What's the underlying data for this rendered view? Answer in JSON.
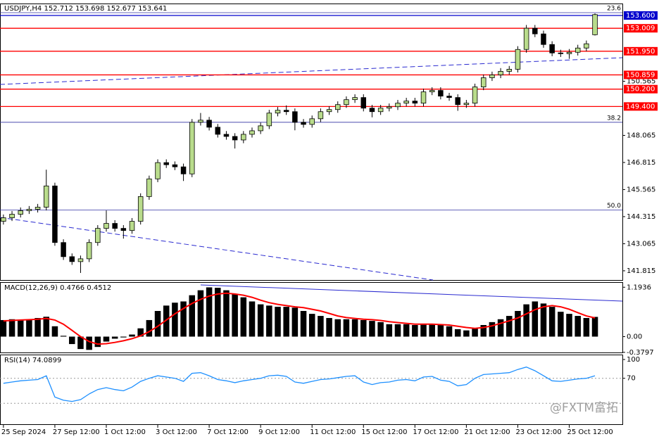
{
  "chart_data": [
    {
      "type": "candlestick",
      "title": "USDJPY,H4 152.712 153.698 152.677 153.641",
      "open": [
        144.1,
        144.263,
        144.426,
        144.589,
        144.655,
        144.752,
        145.732,
        143.12,
        142.467,
        142.239,
        142.369,
        143.12,
        143.773,
        144.002,
        143.773,
        143.675,
        144.1,
        145.242,
        146.058,
        146.809,
        146.711,
        146.613,
        146.287,
        148.67,
        148.768,
        148.442,
        148.115,
        148.017,
        147.854,
        148.115,
        148.278,
        148.507,
        149.095,
        149.225,
        149.16,
        148.67,
        148.572,
        148.833,
        149.16,
        149.258,
        149.486,
        149.715,
        149.813,
        149.323,
        149.16,
        149.323,
        149.388,
        149.552,
        149.65,
        149.552,
        150.074,
        150.139,
        149.878,
        149.813,
        149.486,
        149.552,
        150.303,
        150.727,
        150.858,
        151.021,
        151.119,
        152.033,
        153.012,
        152.751,
        152.261,
        151.87,
        151.837,
        151.902,
        152.098,
        152.712
      ],
      "high": [
        144.413,
        144.576,
        144.739,
        144.805,
        144.902,
        146.483,
        145.882,
        143.27,
        142.617,
        142.519,
        143.27,
        143.923,
        144.6,
        144.152,
        143.923,
        144.25,
        145.392,
        146.208,
        146.959,
        146.959,
        146.863,
        146.763,
        148.82,
        149.1,
        148.918,
        148.592,
        148.265,
        148.167,
        148.265,
        148.428,
        148.657,
        149.245,
        149.375,
        149.45,
        149.31,
        148.82,
        148.983,
        149.31,
        149.408,
        149.636,
        149.865,
        149.963,
        149.963,
        149.473,
        149.473,
        149.538,
        149.702,
        149.8,
        149.8,
        150.224,
        150.289,
        150.289,
        150.028,
        149.963,
        149.702,
        150.453,
        150.877,
        151.008,
        151.171,
        151.269,
        152.183,
        153.162,
        153.162,
        152.901,
        152.411,
        152.02,
        152.052,
        152.248,
        152.444,
        153.698
      ],
      "low": [
        143.95,
        144.113,
        144.276,
        144.439,
        144.505,
        144.602,
        142.97,
        142.317,
        142.089,
        141.716,
        142.219,
        142.97,
        143.623,
        143.623,
        143.3,
        143.525,
        143.95,
        145.092,
        145.908,
        146.561,
        146.463,
        145.96,
        146.137,
        148.52,
        148.292,
        147.965,
        147.867,
        147.46,
        147.704,
        147.965,
        148.128,
        148.357,
        148.945,
        149.01,
        148.3,
        148.422,
        148.422,
        148.683,
        149.01,
        149.108,
        149.336,
        149.565,
        149.173,
        148.9,
        149.01,
        149.173,
        149.238,
        149.402,
        149.402,
        149.402,
        149.924,
        149.728,
        149.663,
        149.2,
        149.336,
        149.402,
        150.153,
        150.577,
        150.708,
        150.869,
        150.969,
        151.883,
        152.601,
        152.111,
        151.72,
        151.687,
        151.6,
        151.752,
        151.948,
        152.677
      ],
      "close": [
        144.263,
        144.426,
        144.589,
        144.655,
        144.752,
        145.732,
        143.12,
        142.467,
        142.239,
        142.369,
        143.12,
        143.773,
        144.002,
        143.773,
        143.675,
        144.1,
        145.242,
        146.058,
        146.809,
        146.711,
        146.613,
        146.287,
        148.67,
        148.768,
        148.442,
        148.115,
        148.017,
        147.854,
        148.115,
        148.278,
        148.507,
        149.095,
        149.225,
        149.16,
        148.67,
        148.572,
        148.833,
        149.16,
        149.258,
        149.486,
        149.715,
        149.813,
        149.323,
        149.16,
        149.323,
        149.388,
        149.552,
        149.65,
        149.552,
        150.074,
        150.139,
        149.878,
        149.813,
        149.486,
        149.552,
        150.303,
        150.727,
        150.858,
        151.021,
        151.119,
        152.033,
        153.012,
        152.751,
        152.261,
        151.87,
        151.837,
        151.902,
        152.098,
        152.294,
        153.641
      ],
      "up_color": "#b9dc8c",
      "down_color": "#000000",
      "xlim": [
        -0.4,
        72.2
      ],
      "xticks": [
        {
          "value": 0,
          "label": "25 Sep 2024"
        },
        {
          "value": 6,
          "label": "27 Sep 12:00"
        },
        {
          "value": 12,
          "label": "1 Oct 12:00"
        },
        {
          "value": 18,
          "label": "3 Oct 12:00"
        },
        {
          "value": 24,
          "label": "7 Oct 12:00"
        },
        {
          "value": 30,
          "label": "9 Oct 12:00"
        },
        {
          "value": 36,
          "label": "11 Oct 12:00"
        },
        {
          "value": 42,
          "label": "15 Oct 12:00"
        },
        {
          "value": 48,
          "label": "17 Oct 12:00"
        },
        {
          "value": 54,
          "label": "21 Oct 12:00"
        },
        {
          "value": 60,
          "label": "23 Oct 12:00"
        },
        {
          "value": 66,
          "label": "25 Oct 12:00"
        }
      ],
      "ylim": [
        141.39,
        154.12
      ],
      "yticks": [
        150.565,
        148.065,
        146.815,
        145.565,
        144.315,
        143.065,
        141.815
      ],
      "levels": [
        {
          "value": 153.6,
          "label": "153.600",
          "color": "#0000cd"
        },
        {
          "value": 153.009,
          "color": "#ff0000"
        },
        {
          "value": 151.95,
          "label": "151.950",
          "color": "#ff0000"
        },
        {
          "value": 150.859,
          "color": "#ff0000"
        },
        {
          "value": 150.2,
          "label": "150.200",
          "color": "#ff0000"
        },
        {
          "value": 149.4,
          "label": "149.400",
          "color": "#ff0000"
        }
      ],
      "fibs": [
        {
          "value": 153.73,
          "label": "23.6"
        },
        {
          "value": 148.67,
          "label": "38.2"
        },
        {
          "value": 144.62,
          "label": "50.0"
        }
      ]
    },
    {
      "type": "macd",
      "title": "MACD(12,26,9) 0.4766 0.4512",
      "series": [
        {
          "color": "#000000",
          "values": [
            0.4,
            0.42,
            0.4,
            0.42,
            0.45,
            0.48,
            0.25,
            0.02,
            -0.18,
            -0.3,
            -0.32,
            -0.25,
            -0.12,
            -0.05,
            -0.02,
            0.05,
            0.2,
            0.4,
            0.62,
            0.75,
            0.82,
            0.85,
            1.0,
            1.12,
            1.19,
            1.18,
            1.12,
            1.02,
            0.95,
            0.85,
            0.78,
            0.75,
            0.72,
            0.72,
            0.7,
            0.62,
            0.55,
            0.5,
            0.45,
            0.42,
            0.42,
            0.42,
            0.4,
            0.38,
            0.35,
            0.3,
            0.3,
            0.3,
            0.28,
            0.3,
            0.3,
            0.28,
            0.25,
            0.18,
            0.15,
            0.2,
            0.28,
            0.35,
            0.42,
            0.5,
            0.62,
            0.78,
            0.85,
            0.8,
            0.72,
            0.6,
            0.55,
            0.5,
            0.45,
            0.4766
          ]
        },
        {
          "color": "#ff0000",
          "values": [
            0.38,
            0.39,
            0.4,
            0.41,
            0.42,
            0.44,
            0.4,
            0.3,
            0.15,
            0.0,
            -0.12,
            -0.18,
            -0.17,
            -0.14,
            -0.1,
            -0.05,
            0.02,
            0.12,
            0.25,
            0.4,
            0.55,
            0.68,
            0.8,
            0.9,
            0.98,
            1.03,
            1.05,
            1.03,
            1.0,
            0.95,
            0.88,
            0.82,
            0.78,
            0.75,
            0.72,
            0.7,
            0.66,
            0.62,
            0.56,
            0.5,
            0.46,
            0.44,
            0.42,
            0.41,
            0.39,
            0.36,
            0.34,
            0.32,
            0.3,
            0.3,
            0.3,
            0.29,
            0.28,
            0.25,
            0.22,
            0.2,
            0.22,
            0.26,
            0.32,
            0.38,
            0.45,
            0.55,
            0.65,
            0.72,
            0.75,
            0.72,
            0.66,
            0.58,
            0.5,
            0.4512
          ]
        }
      ],
      "ylim": [
        -0.4,
        1.3
      ],
      "yticks": [
        1.1936,
        {
          "value": 0,
          "label": "0.00"
        },
        -0.3797
      ]
    },
    {
      "type": "line",
      "title": "RSI(14) 74.0899",
      "series": [
        {
          "color": "#1e90ff",
          "values": [
            62,
            64,
            66,
            67,
            68,
            74,
            40,
            35,
            33,
            36,
            45,
            52,
            55,
            52,
            50,
            56,
            65,
            70,
            74,
            72,
            70,
            65,
            78,
            79,
            74,
            68,
            66,
            63,
            66,
            68,
            70,
            74,
            75,
            73,
            64,
            62,
            65,
            68,
            69,
            71,
            73,
            74,
            64,
            60,
            63,
            64,
            67,
            68,
            66,
            72,
            73,
            67,
            65,
            58,
            60,
            70,
            76,
            77,
            78,
            79,
            84,
            88,
            82,
            74,
            66,
            65,
            67,
            69,
            70,
            74.0899
          ]
        }
      ],
      "ylim": [
        0,
        100
      ],
      "yticks": [
        100,
        70
      ],
      "levels": [
        70,
        30
      ]
    }
  ],
  "watermark": "@FXTM富拓"
}
